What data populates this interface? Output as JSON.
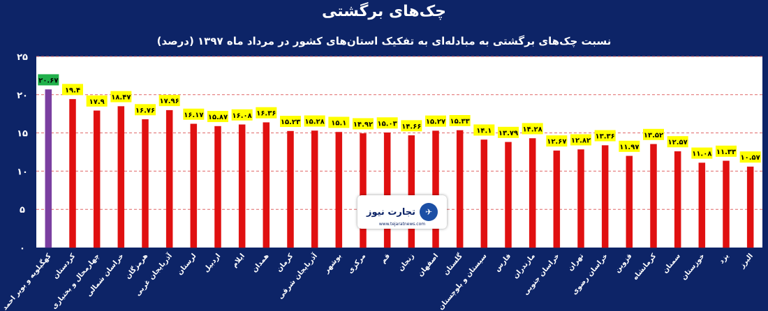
{
  "title": "چک‌های برگشتی",
  "subtitle": "نسبت چک‌های برگشتی به مبادله‌ای به تفکیک استان‌های کشور در مرداد ماه ۱۳۹۷ (درصد)",
  "logo": {
    "name": "تجارت نیوز",
    "url_text": "www.tejaratnews.com"
  },
  "colors": {
    "background": "#0d2467",
    "plot_bg": "#ffffff",
    "bar_default": "#e01010",
    "bar_highlight": "#7a3fa0",
    "label_default": "#ffff00",
    "label_highlight": "#21b04b",
    "grid": "#e06666"
  },
  "chart_data": {
    "type": "bar",
    "ylim": [
      0,
      25
    ],
    "yticks": [
      "۰",
      "۵",
      "۱۰",
      "۱۵",
      "۲۰",
      "۲۵"
    ],
    "grid": true,
    "categories": [
      "کهگیلویه و بویر احمد",
      "کردستان",
      "چهارمحال و بختیاری",
      "خراسان شمالی",
      "هرمزگان",
      "آذربایجان غربی",
      "لرستان",
      "اردبیل",
      "ایلام",
      "همدان",
      "کرمان",
      "آذربایجان شرقی",
      "بوشهر",
      "مرکزی",
      "قم",
      "زنجان",
      "اصفهان",
      "گلستان",
      "سیستان و بلوچستان",
      "فارس",
      "مازندران",
      "خراسان جنوبی",
      "تهران",
      "خراسان رضوی",
      "قزوین",
      "کرمانشاه",
      "سمنان",
      "خوزستان",
      "یزد",
      "البرز"
    ],
    "values": [
      20.67,
      19.4,
      17.9,
      18.47,
      16.76,
      17.96,
      16.17,
      15.87,
      16.08,
      16.36,
      15.23,
      15.28,
      15.1,
      14.92,
      15.03,
      14.66,
      15.27,
      15.33,
      14.1,
      13.79,
      14.28,
      12.67,
      12.82,
      13.36,
      11.97,
      13.52,
      12.57,
      11.08,
      11.33,
      10.57
    ],
    "data_labels": [
      "۲۰.۶۷",
      "۱۹.۴",
      "۱۷.۹",
      "۱۸.۴۷",
      "۱۶.۷۶",
      "۱۷.۹۶",
      "۱۶.۱۷",
      "۱۵.۸۷",
      "۱۶.۰۸",
      "۱۶.۳۶",
      "۱۵.۲۳",
      "۱۵.۲۸",
      "۱۵.۱",
      "۱۴.۹۲",
      "۱۵.۰۳",
      "۱۴.۶۶",
      "۱۵.۲۷",
      "۱۵.۳۳",
      "۱۴.۱",
      "۱۳.۷۹",
      "۱۴.۲۸",
      "۱۲.۶۷",
      "۱۲.۸۲",
      "۱۳.۳۶",
      "۱۱.۹۷",
      "۱۳.۵۲",
      "۱۲.۵۷",
      "۱۱.۰۸",
      "۱۱.۳۳",
      "۱۰.۵۷"
    ],
    "highlight_index": 0
  }
}
